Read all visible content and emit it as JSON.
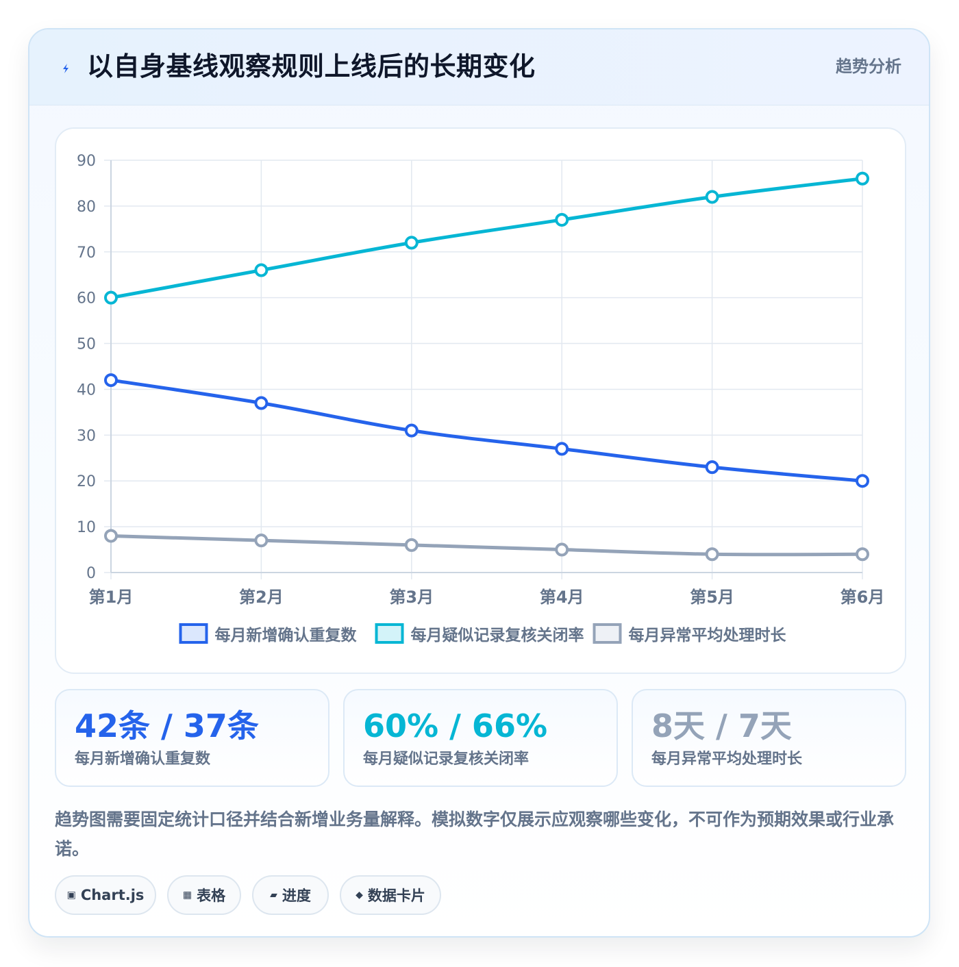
{
  "header": {
    "icon": "lightning-icon",
    "title": "以自身基线观察规则上线后的长期变化",
    "tag": "趋势分析"
  },
  "colors": {
    "blue": "#2563eb",
    "cyan": "#06b6d4",
    "gray": "#94a3b8"
  },
  "chart_data": {
    "type": "line",
    "categories": [
      "第1月",
      "第2月",
      "第3月",
      "第4月",
      "第5月",
      "第6月"
    ],
    "ylim": [
      0,
      90
    ],
    "yticks": [
      0,
      10,
      20,
      30,
      40,
      50,
      60,
      70,
      80,
      90
    ],
    "grid": true,
    "legend_position": "bottom",
    "series": [
      {
        "name": "每月新增确认重复数",
        "color": "#2563eb",
        "fill": "#dbe7fd",
        "values": [
          42,
          37,
          31,
          27,
          23,
          20
        ]
      },
      {
        "name": "每月疑似记录复核关闭率",
        "color": "#06b6d4",
        "fill": "#d3f3f9",
        "values": [
          60,
          66,
          72,
          77,
          82,
          86
        ]
      },
      {
        "name": "每月异常平均处理时长",
        "color": "#94a3b8",
        "fill": "#eef1f6",
        "values": [
          8,
          7,
          6,
          5,
          4,
          4
        ]
      }
    ]
  },
  "stats": [
    {
      "value": "42条 / 37条",
      "label": "每月新增确认重复数",
      "color": "#2563eb"
    },
    {
      "value": "60% / 66%",
      "label": "每月疑似记录复核关闭率",
      "color": "#06b6d4"
    },
    {
      "value": "8天 / 7天",
      "label": "每月异常平均处理时长",
      "color": "#94a3b8"
    }
  ],
  "note": "趋势图需要固定统计口径并结合新增业务量解释。模拟数字仅展示应观察哪些变化，不可作为预期效果或行业承诺。",
  "chips": [
    {
      "icon": "▣",
      "icon_name": "chart-icon",
      "label": "Chart.js"
    },
    {
      "icon": "▦",
      "icon_name": "table-icon",
      "label": "表格"
    },
    {
      "icon": "▰",
      "icon_name": "progress-icon",
      "label": "进度"
    },
    {
      "icon": "◆",
      "icon_name": "data-card-icon",
      "label": "数据卡片"
    }
  ]
}
